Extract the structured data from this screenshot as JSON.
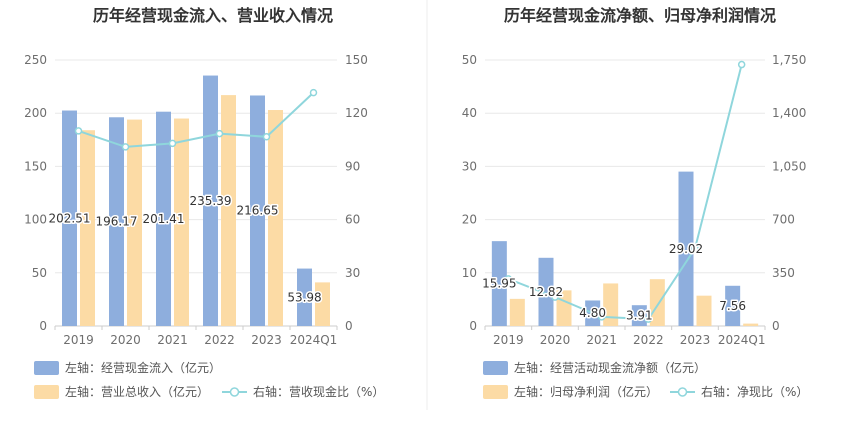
{
  "chart_data": [
    {
      "type": "bar",
      "title": "历年经营现金流入、营业收入情况",
      "categories": [
        "2019",
        "2020",
        "2021",
        "2022",
        "2023",
        "2024Q1"
      ],
      "left_axis": {
        "min": 0,
        "max": 250,
        "ticks": [
          "0",
          "50",
          "100",
          "150",
          "200",
          "250"
        ]
      },
      "right_axis": {
        "min": 0,
        "max": 150,
        "ticks": [
          "0",
          "30",
          "60",
          "90",
          "120",
          "150"
        ]
      },
      "series": [
        {
          "name": "左轴：经营现金流入（亿元）",
          "axis": "left",
          "type": "bar",
          "color": "#8eaedd",
          "values": [
            202.51,
            196.17,
            201.41,
            235.39,
            216.65,
            53.98
          ],
          "labels": [
            "202.51",
            "196.17",
            "201.41",
            "235.39",
            "216.65",
            "53.98"
          ]
        },
        {
          "name": "左轴：营业总收入（亿元）",
          "axis": "left",
          "type": "bar",
          "color": "#fcdba5",
          "values": [
            184,
            194,
            195,
            217,
            203,
            41
          ]
        },
        {
          "name": "右轴：营收现金比（%）",
          "axis": "right",
          "type": "line",
          "color": "#8fd6dc",
          "values": [
            110,
            101,
            103,
            108.5,
            106.7,
            131.6
          ]
        }
      ]
    },
    {
      "type": "bar",
      "title": "历年经营现金流净额、归母净利润情况",
      "categories": [
        "2019",
        "2020",
        "2021",
        "2022",
        "2023",
        "2024Q1"
      ],
      "left_axis": {
        "min": 0,
        "max": 50,
        "ticks": [
          "0",
          "10",
          "20",
          "30",
          "40",
          "50"
        ]
      },
      "right_axis": {
        "min": 0,
        "max": 1750,
        "ticks": [
          "0",
          "350",
          "700",
          "1,050",
          "1,400",
          "1,750"
        ]
      },
      "series": [
        {
          "name": "左轴：经营活动现金流净额（亿元）",
          "axis": "left",
          "type": "bar",
          "color": "#8eaedd",
          "values": [
            15.95,
            12.82,
            4.8,
            3.91,
            29.02,
            7.56
          ],
          "labels": [
            "15.95",
            "12.82",
            "4.80",
            "3.91",
            "29.02",
            "7.56"
          ]
        },
        {
          "name": "左轴：归母净利润（亿元）",
          "axis": "left",
          "type": "bar",
          "color": "#fcdba5",
          "values": [
            5.1,
            6.7,
            8.0,
            8.8,
            5.7,
            0.45
          ]
        },
        {
          "name": "右轴：净现比（%）",
          "axis": "right",
          "type": "line",
          "color": "#8fd6dc",
          "values": [
            310,
            190,
            60,
            45,
            510,
            1720
          ]
        }
      ]
    }
  ]
}
